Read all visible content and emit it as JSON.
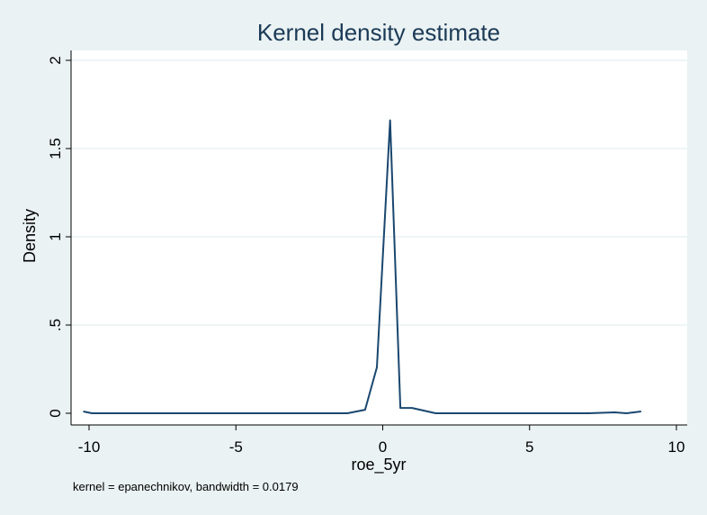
{
  "chart_data": {
    "type": "line",
    "title": "Kernel density estimate",
    "xlabel": "roe_5yr",
    "ylabel": "Density",
    "note": "kernel = epanechnikov, bandwidth = 0.0179",
    "xlim": [
      -10.5,
      10.5
    ],
    "ylim": [
      0,
      2
    ],
    "xticks": [
      -10,
      -5,
      0,
      5,
      10
    ],
    "xtick_labels": [
      "-10",
      "-5",
      "0",
      "5",
      "10"
    ],
    "yticks": [
      0,
      0.5,
      1,
      1.5,
      2
    ],
    "ytick_labels": [
      "0",
      ".5",
      "1",
      "1.5",
      "2"
    ],
    "grid": true,
    "line_color": "#1a476f",
    "series": [
      {
        "x": [
          -10.2,
          -9.9,
          -9.0,
          -8.0,
          -7.0,
          -6.0,
          -5.0,
          -4.0,
          -3.0,
          -2.0,
          -1.2,
          -0.6,
          -0.2,
          0.25,
          0.6,
          1.0,
          1.8,
          3.0,
          5.0,
          7.0,
          7.9,
          8.3,
          8.8
        ],
        "y": [
          0.01,
          0.0,
          0.0,
          0.0,
          0.0,
          0.0,
          0.0,
          0.0,
          0.0,
          0.0,
          0.0,
          0.02,
          0.26,
          1.66,
          0.03,
          0.03,
          0.0,
          0.0,
          0.0,
          0.0,
          0.005,
          0.0,
          0.01
        ]
      }
    ]
  }
}
